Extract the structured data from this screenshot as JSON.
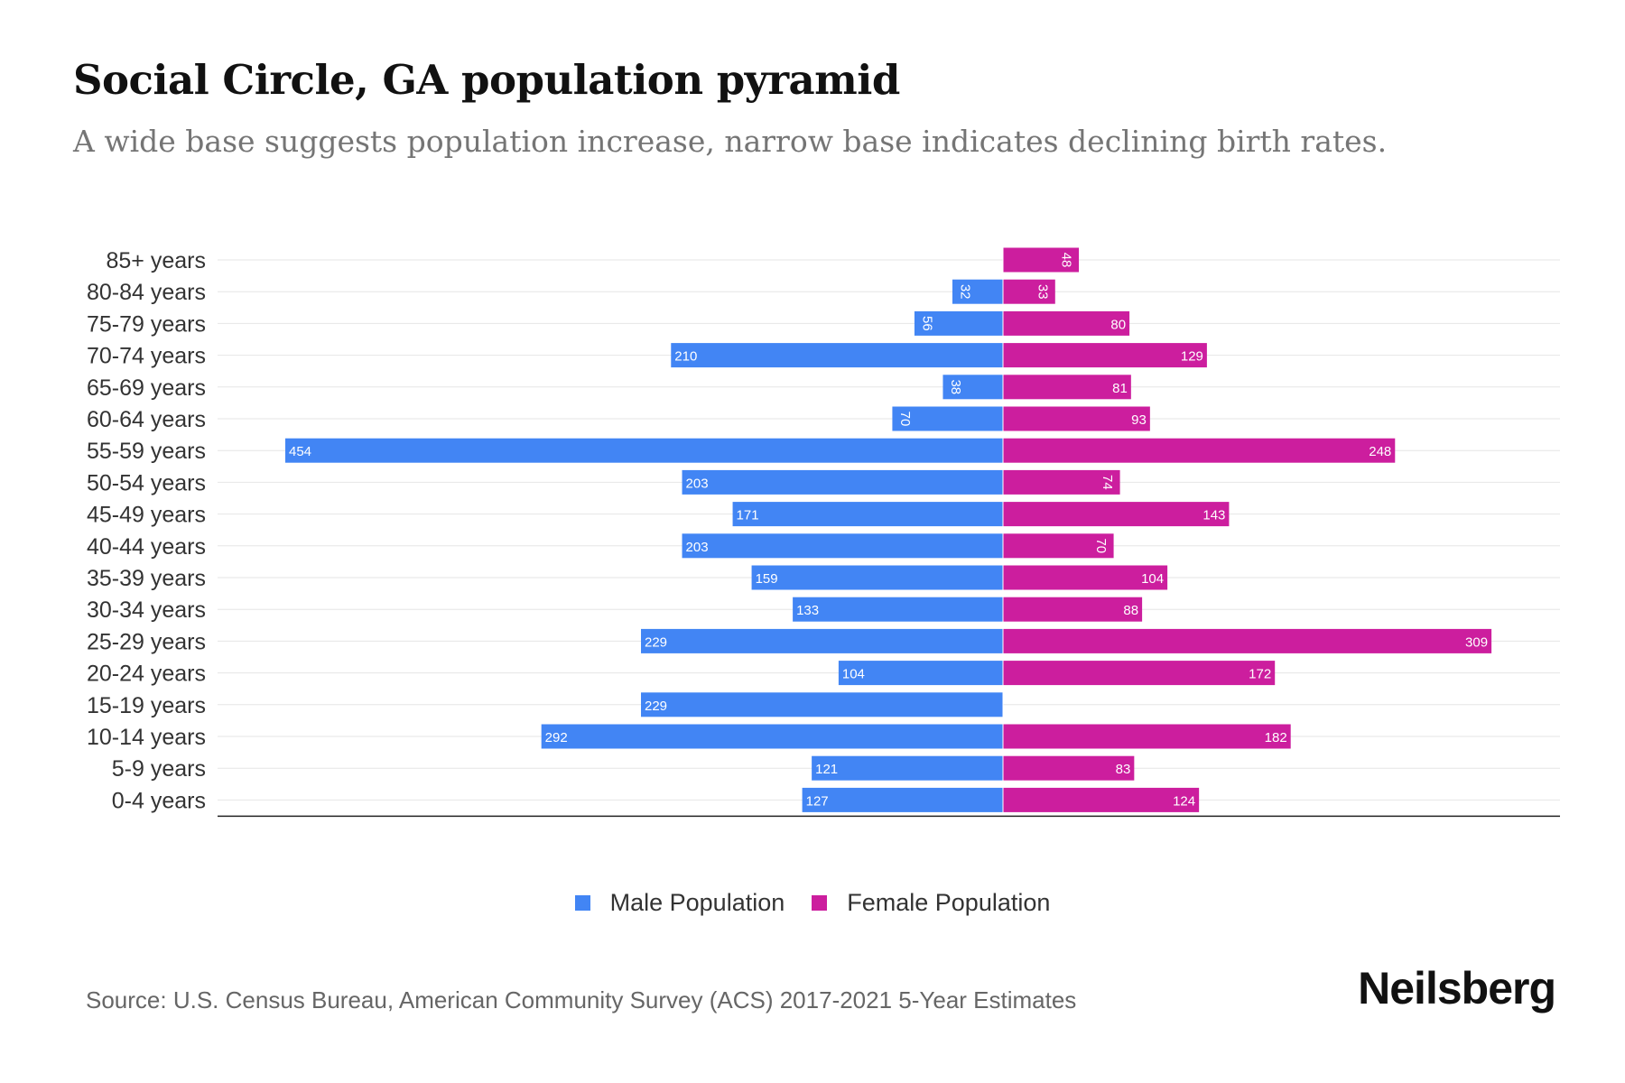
{
  "title": "Social Circle, GA population pyramid",
  "subtitle": "A wide base suggests population increase, narrow base indicates declining birth rates.",
  "source": "Source: U.S. Census Bureau, American Community Survey (ACS) 2017-2021 5-Year Estimates",
  "brand": "Neilsberg",
  "colors": {
    "male": "#4285f4",
    "female": "#cc1e9e",
    "grid": "#e6e6e6",
    "axis": "#222222"
  },
  "legend": {
    "male_label": "Male Population",
    "female_label": "Female Population"
  },
  "chart_data": {
    "type": "bar",
    "orientation": "horizontal-pyramid",
    "categories": [
      "85+ years",
      "80-84 years",
      "75-79 years",
      "70-74 years",
      "65-69 years",
      "60-64 years",
      "55-59 years",
      "50-54 years",
      "45-49 years",
      "40-44 years",
      "35-39 years",
      "30-34 years",
      "25-29 years",
      "20-24 years",
      "15-19 years",
      "10-14 years",
      "5-9 years",
      "0-4 years"
    ],
    "series": [
      {
        "name": "Male Population",
        "values": [
          0,
          32,
          56,
          210,
          38,
          70,
          454,
          203,
          171,
          203,
          159,
          133,
          229,
          104,
          229,
          292,
          121,
          127
        ]
      },
      {
        "name": "Female Population",
        "values": [
          48,
          33,
          80,
          129,
          81,
          93,
          248,
          74,
          143,
          70,
          104,
          88,
          309,
          172,
          0,
          182,
          83,
          124
        ]
      }
    ],
    "xlim": [
      -500,
      350
    ],
    "grid": true,
    "legend_position": "bottom-center"
  }
}
